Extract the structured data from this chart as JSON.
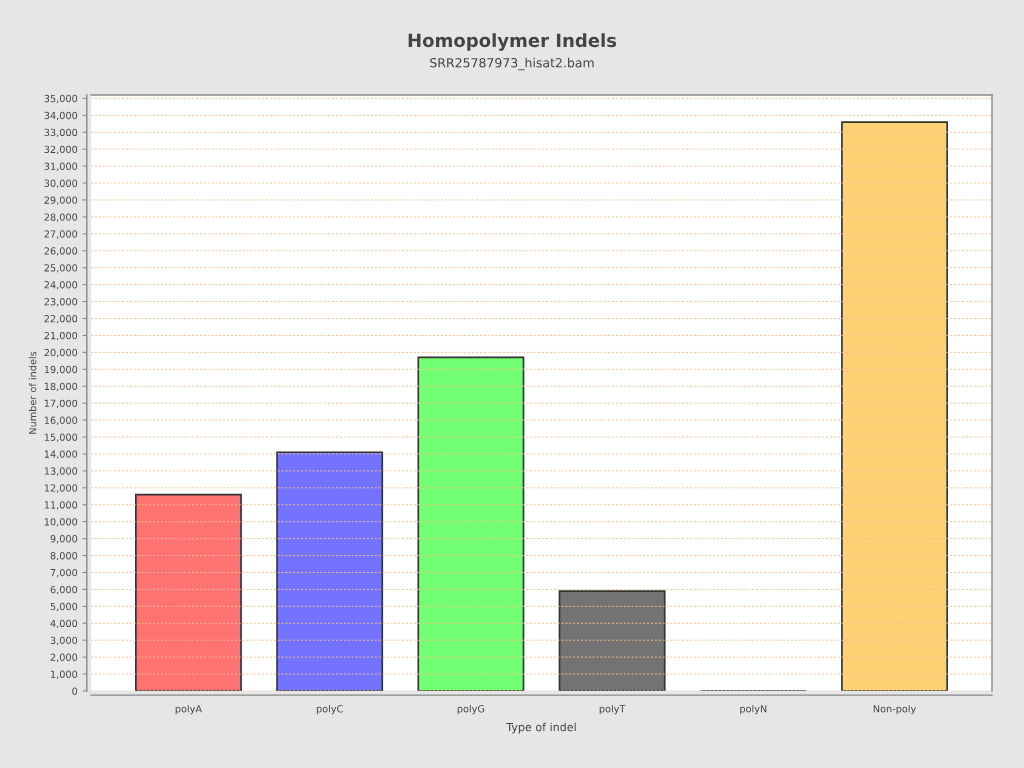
{
  "chart_data": {
    "type": "bar",
    "title": "Homopolymer Indels",
    "subtitle": "SRR25787973_hisat2.bam",
    "xlabel": "Type of indel",
    "ylabel": "Number of indels",
    "categories": [
      "polyA",
      "polyC",
      "polyG",
      "polyT",
      "polyN",
      "Non-poly"
    ],
    "values": [
      11600,
      14100,
      19700,
      5900,
      0,
      33600
    ],
    "colors": [
      "#ff7272",
      "#7373ff",
      "#73ff73",
      "#737373",
      "#333333",
      "#ffd175"
    ],
    "ylim": [
      0,
      35200
    ],
    "yticks": [
      {
        "value": 0,
        "label": "0"
      },
      {
        "value": 1000,
        "label": "1,000"
      },
      {
        "value": 2000,
        "label": "2,000"
      },
      {
        "value": 3000,
        "label": "3,000"
      },
      {
        "value": 4000,
        "label": "4,000"
      },
      {
        "value": 5000,
        "label": "5,000"
      },
      {
        "value": 6000,
        "label": "6,000"
      },
      {
        "value": 7000,
        "label": "7,000"
      },
      {
        "value": 8000,
        "label": "8,000"
      },
      {
        "value": 9000,
        "label": "9,000"
      },
      {
        "value": 10000,
        "label": "10,000"
      },
      {
        "value": 11000,
        "label": "11,000"
      },
      {
        "value": 12000,
        "label": "12,000"
      },
      {
        "value": 13000,
        "label": "13,000"
      },
      {
        "value": 14000,
        "label": "14,000"
      },
      {
        "value": 15000,
        "label": "15,000"
      },
      {
        "value": 16000,
        "label": "16,000"
      },
      {
        "value": 17000,
        "label": "17,000"
      },
      {
        "value": 18000,
        "label": "18,000"
      },
      {
        "value": 19000,
        "label": "19,000"
      },
      {
        "value": 20000,
        "label": "20,000"
      },
      {
        "value": 21000,
        "label": "21,000"
      },
      {
        "value": 22000,
        "label": "22,000"
      },
      {
        "value": 23000,
        "label": "23,000"
      },
      {
        "value": 24000,
        "label": "24,000"
      },
      {
        "value": 25000,
        "label": "25,000"
      },
      {
        "value": 26000,
        "label": "26,000"
      },
      {
        "value": 27000,
        "label": "27,000"
      },
      {
        "value": 28000,
        "label": "28,000"
      },
      {
        "value": 29000,
        "label": "29,000"
      },
      {
        "value": 30000,
        "label": "30,000"
      },
      {
        "value": 31000,
        "label": "31,000"
      },
      {
        "value": 32000,
        "label": "32,000"
      },
      {
        "value": 33000,
        "label": "33,000"
      },
      {
        "value": 34000,
        "label": "34,000"
      },
      {
        "value": 35000,
        "label": "35,000"
      }
    ],
    "grid": "y",
    "legend": false
  }
}
